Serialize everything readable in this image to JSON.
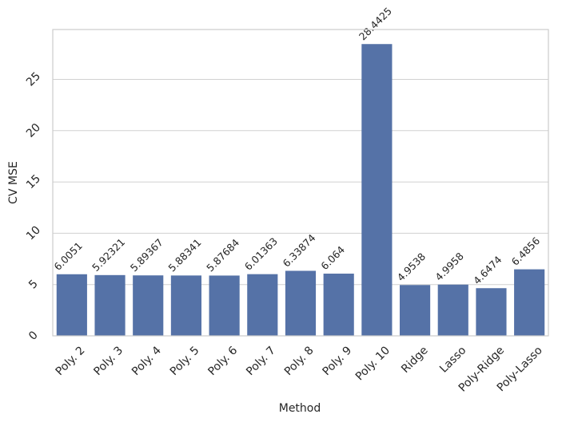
{
  "chart_data": {
    "type": "bar",
    "x_label": "Method",
    "y_label": "CV MSE",
    "categories": [
      "Poly. 2",
      "Poly. 3",
      "Poly. 4",
      "Poly. 5",
      "Poly. 6",
      "Poly. 7",
      "Poly. 8",
      "Poly. 9",
      "Poly. 10",
      "Ridge",
      "Lasso",
      "Poly-Ridge",
      "Poly-Lasso"
    ],
    "values": [
      6.0051,
      5.92321,
      5.89367,
      5.88341,
      5.87684,
      6.01363,
      6.33874,
      6.064,
      28.4425,
      4.9538,
      4.9958,
      4.6474,
      6.4856
    ],
    "color": "#5572a7",
    "ylim": [
      0,
      29.86
    ],
    "yticks": [
      0,
      5,
      10,
      15,
      20,
      25
    ],
    "grid": true
  }
}
